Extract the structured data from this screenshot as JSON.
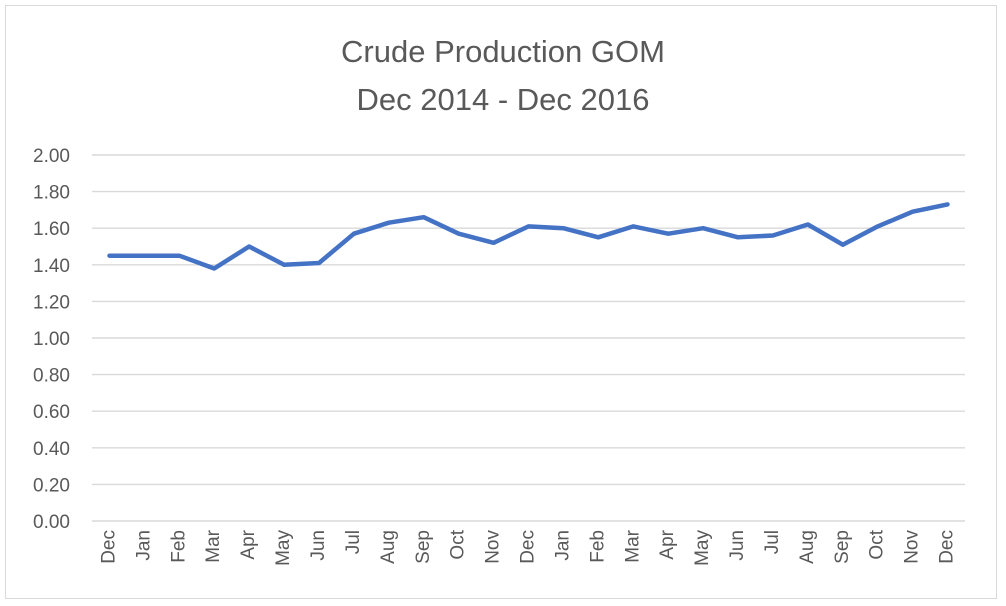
{
  "chart_data": {
    "type": "line",
    "title_lines": [
      "Crude Production GOM",
      "Dec 2014 - Dec 2016"
    ],
    "categories": [
      "Dec",
      "Jan",
      "Feb",
      "Mar",
      "Apr",
      "May",
      "Jun",
      "Jul",
      "Aug",
      "Sep",
      "Oct",
      "Nov",
      "Dec",
      "Jan",
      "Feb",
      "Mar",
      "Apr",
      "May",
      "Jun",
      "Jul",
      "Aug",
      "Sep",
      "Oct",
      "Nov",
      "Dec"
    ],
    "series": [
      {
        "values": [
          1.45,
          1.45,
          1.45,
          1.38,
          1.5,
          1.4,
          1.41,
          1.57,
          1.63,
          1.66,
          1.57,
          1.52,
          1.61,
          1.6,
          1.55,
          1.61,
          1.57,
          1.6,
          1.55,
          1.56,
          1.62,
          1.51,
          1.61,
          1.69,
          1.73
        ],
        "color": "#4472c4"
      }
    ],
    "y_ticks": [
      "0.00",
      "0.20",
      "0.40",
      "0.60",
      "0.80",
      "1.00",
      "1.20",
      "1.40",
      "1.60",
      "1.80",
      "2.00"
    ],
    "xlabel": "",
    "ylabel": "",
    "ylim": [
      0,
      2
    ],
    "grid": "horizontal",
    "legend": "none"
  }
}
